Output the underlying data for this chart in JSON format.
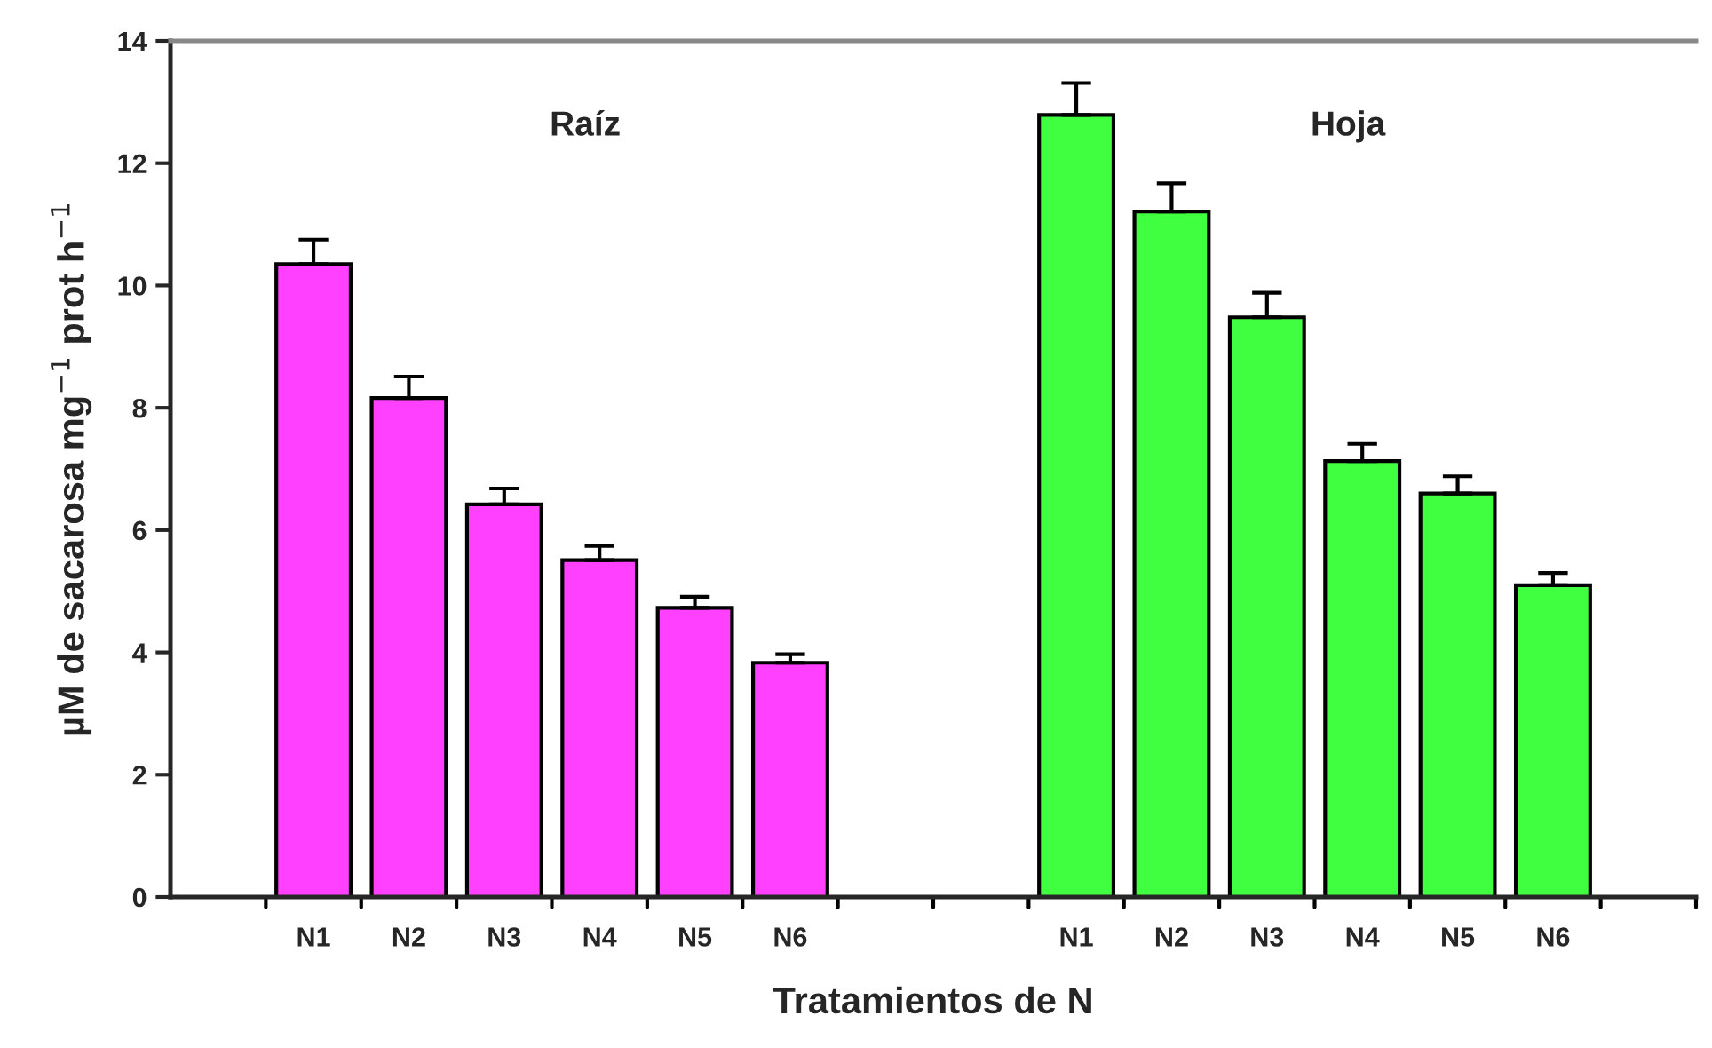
{
  "chart_data": {
    "type": "bar",
    "xlabel": "Tratamientos de N",
    "ylabel": "µM de sacarosa mg$^{−1}$ prot h$^{−1}$",
    "categories": [
      null,
      "N1",
      "N2",
      "N3",
      "N4",
      "N5",
      "N6",
      null,
      null,
      "N1",
      "N2",
      "N3",
      "N4",
      "N5",
      "N6",
      null
    ],
    "values": [
      null,
      10.35,
      8.16,
      6.42,
      5.51,
      4.73,
      3.83,
      null,
      null,
      12.79,
      11.21,
      9.48,
      7.13,
      6.6,
      5.1,
      null
    ],
    "errors": [
      null,
      [
        10.35,
        10.75
      ],
      [
        8.16,
        8.51
      ],
      [
        6.42,
        6.68
      ],
      [
        5.51,
        5.74
      ],
      [
        4.73,
        4.91
      ],
      [
        3.83,
        3.97
      ],
      null,
      null,
      [
        12.79,
        13.31
      ],
      [
        11.21,
        11.67
      ],
      [
        9.48,
        9.88
      ],
      [
        7.13,
        7.41
      ],
      [
        6.6,
        6.88
      ],
      [
        5.1,
        5.3
      ],
      null
    ],
    "colors": [
      null,
      "#ff40ff",
      "#ff40ff",
      "#ff40ff",
      "#ff40ff",
      "#ff40ff",
      "#ff40ff",
      null,
      null,
      "#40ff40",
      "#40ff40",
      "#40ff40",
      "#40ff40",
      "#40ff40",
      "#40ff40",
      null
    ],
    "annotations": [
      "Raíz",
      "Hoja"
    ],
    "ylim": [
      0,
      14
    ],
    "yticks": [
      0,
      2,
      4,
      6,
      8,
      10,
      12,
      14
    ],
    "grid": false,
    "legend": false
  }
}
